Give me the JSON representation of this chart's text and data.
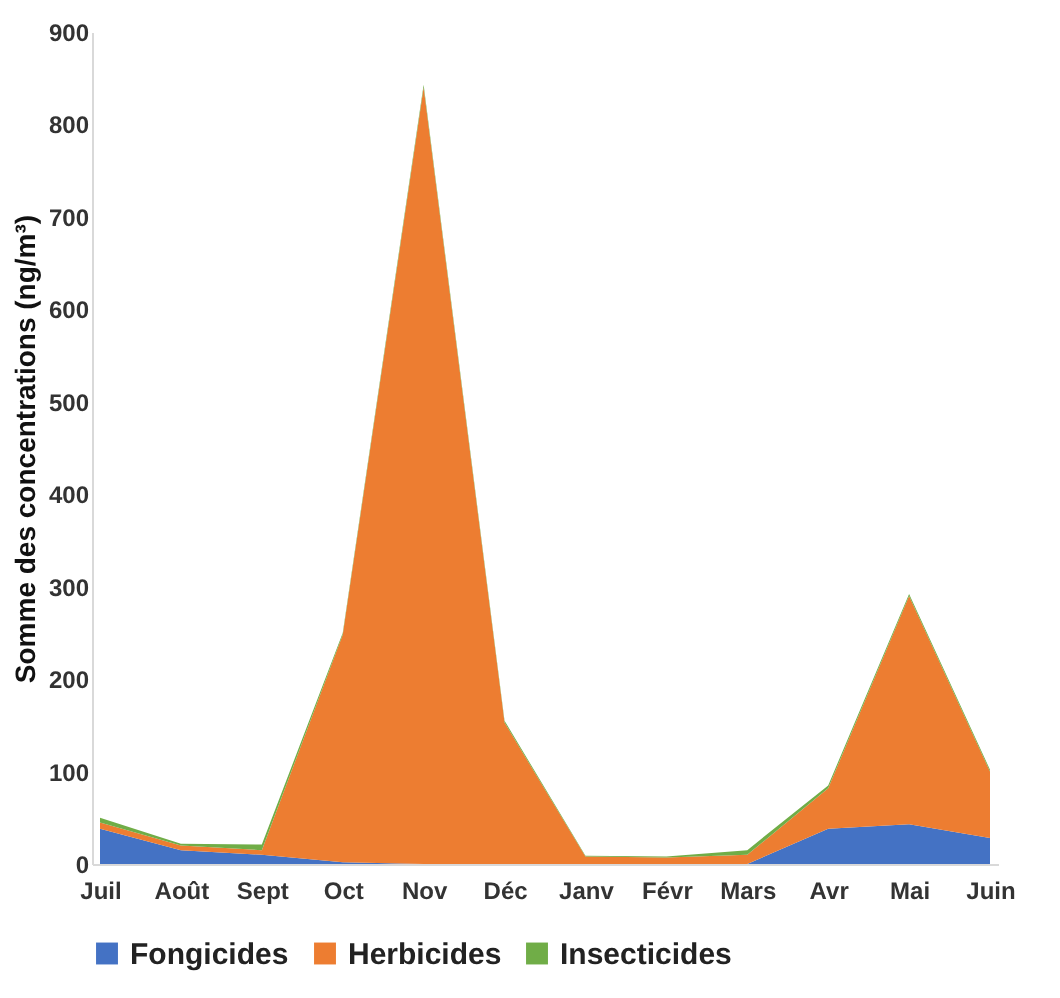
{
  "chart_data": {
    "type": "area",
    "stacked": true,
    "ylabel": "Somme des concentrations (ng/m³)",
    "categories": [
      "Juil",
      "Août",
      "Sept",
      "Oct",
      "Nov",
      "Déc",
      "Janv",
      "Févr",
      "Mars",
      "Avr",
      "Mai",
      "Juin"
    ],
    "series": [
      {
        "name": "Fongicides",
        "color": "#4472c4",
        "values": [
          38,
          15,
          10,
          2,
          0,
          0,
          0,
          0,
          0,
          38,
          43,
          28
        ]
      },
      {
        "name": "Herbicides",
        "color": "#ed7d31",
        "values": [
          7,
          5,
          5,
          246,
          840,
          153,
          8,
          7,
          10,
          44,
          247,
          72
        ]
      },
      {
        "name": "Insecticides",
        "color": "#70ad47",
        "values": [
          5,
          2,
          6,
          2,
          3,
          2,
          1,
          1,
          5,
          3,
          2,
          2
        ]
      }
    ],
    "ylim": [
      0,
      900
    ],
    "yticks": [
      0,
      100,
      200,
      300,
      400,
      500,
      600,
      700,
      800,
      900
    ],
    "grid": false,
    "legend": "bottom"
  }
}
